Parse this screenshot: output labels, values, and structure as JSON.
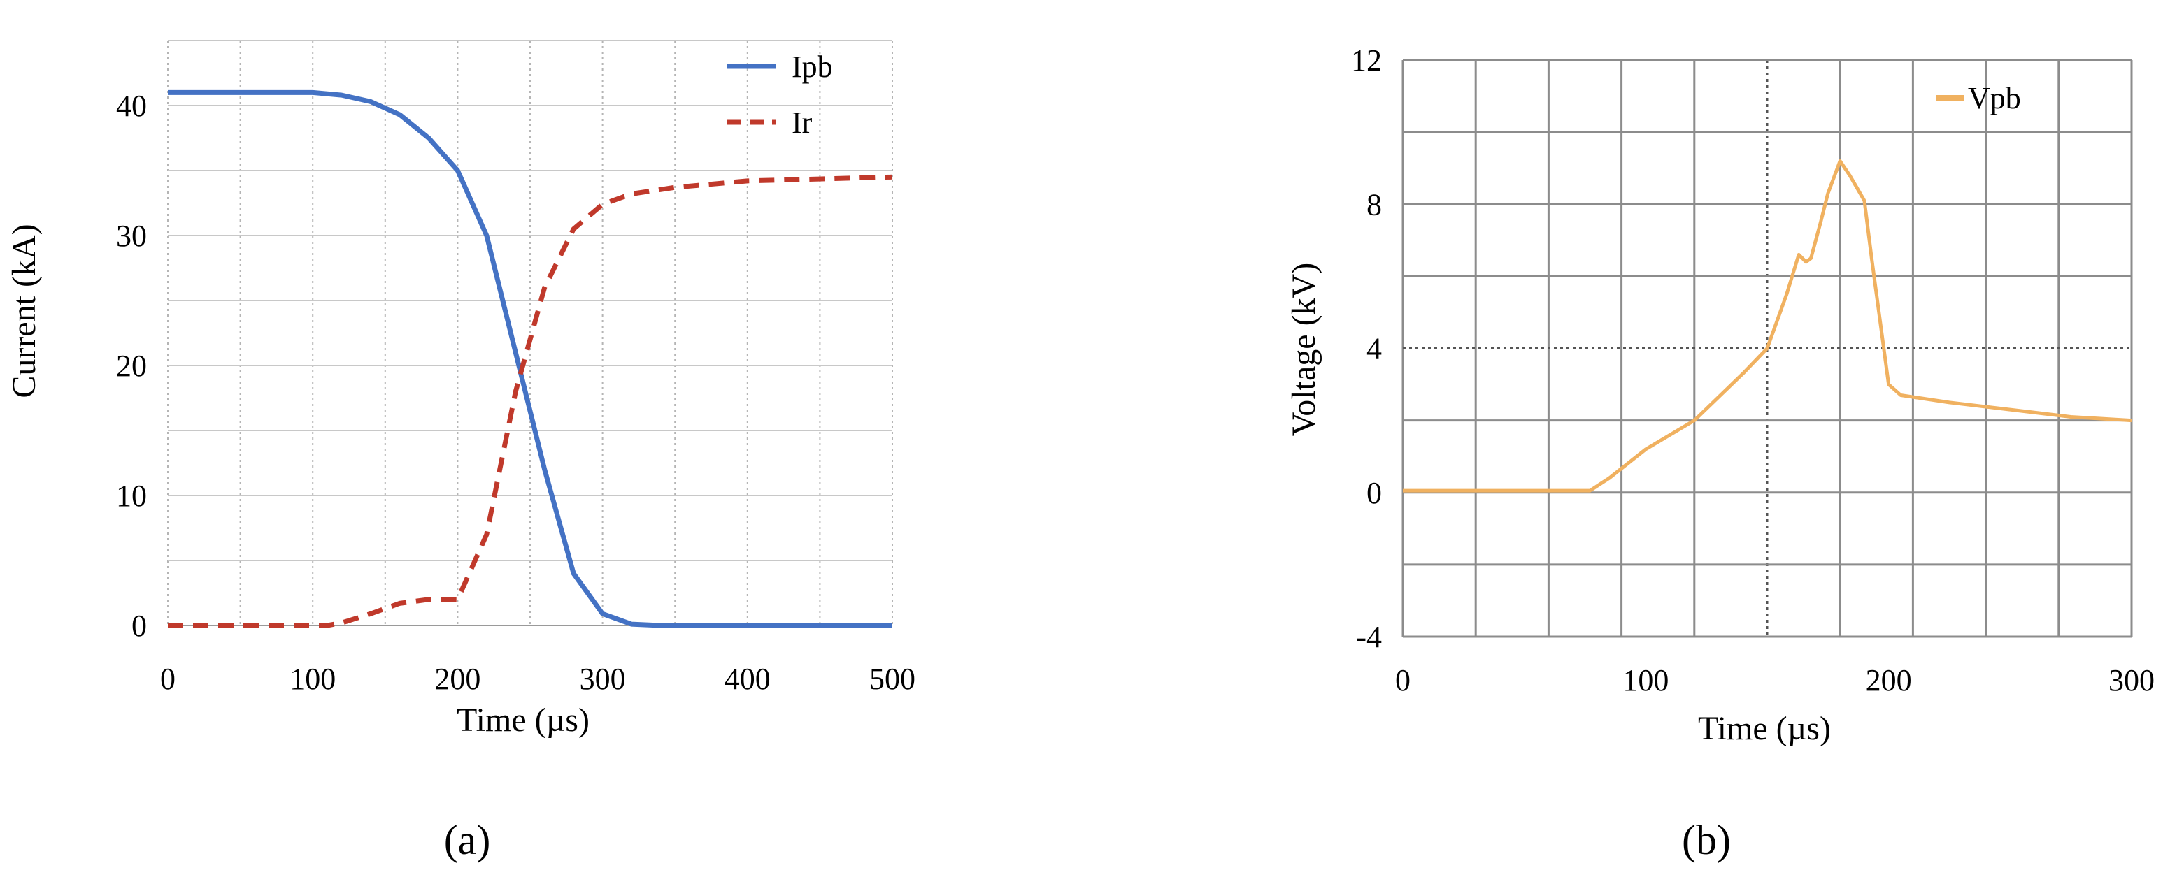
{
  "chart_data": [
    {
      "type": "line",
      "panel_label": "(a)",
      "xlabel": "Time (µs)",
      "ylabel": "Current (kA)",
      "xlim": [
        0,
        500
      ],
      "ylim": [
        0,
        45
      ],
      "xticks": [
        0,
        100,
        200,
        300,
        400,
        500
      ],
      "yticks": [
        0,
        10,
        20,
        30,
        40
      ],
      "grid": true,
      "legend_position": "top-right",
      "series": [
        {
          "name": "Ipb",
          "color": "#4472c4",
          "dash": "solid",
          "x": [
            0,
            100,
            120,
            140,
            160,
            180,
            200,
            220,
            240,
            260,
            280,
            300,
            320,
            340,
            400,
            500
          ],
          "y": [
            41,
            41,
            40.8,
            40.3,
            39.3,
            37.5,
            35,
            30,
            21,
            12,
            4,
            0.9,
            0.1,
            0,
            0,
            0
          ]
        },
        {
          "name": "Ir",
          "color": "#c0392b",
          "dash": "dashed",
          "x": [
            0,
            110,
            120,
            140,
            160,
            180,
            200,
            220,
            240,
            260,
            280,
            300,
            320,
            350,
            400,
            500
          ],
          "y": [
            0,
            0,
            0.2,
            0.9,
            1.7,
            2,
            2,
            7,
            18,
            26,
            30.5,
            32.4,
            33.2,
            33.7,
            34.2,
            34.5
          ]
        }
      ]
    },
    {
      "type": "line",
      "panel_label": "(b)",
      "xlabel": "Time (µs)",
      "ylabel": "Voltage (kV)",
      "xlim": [
        0,
        300
      ],
      "ylim": [
        -4,
        12
      ],
      "xticks": [
        0,
        100,
        200,
        300
      ],
      "yticks": [
        -4,
        0,
        4,
        8,
        12
      ],
      "grid": true,
      "legend_position": "top-right",
      "series": [
        {
          "name": "Vpb",
          "color": "#f0b160",
          "dash": "solid",
          "x": [
            0,
            77,
            85,
            100,
            120,
            140,
            150,
            158,
            163,
            166,
            168,
            172,
            175,
            180,
            184,
            190,
            193,
            197,
            200,
            205,
            225,
            250,
            275,
            300
          ],
          "y": [
            0.05,
            0.05,
            0.4,
            1.2,
            2,
            3.3,
            4,
            5.5,
            6.6,
            6.4,
            6.5,
            7.5,
            8.3,
            9.2,
            8.8,
            8.1,
            6.5,
            4.5,
            3,
            2.7,
            2.5,
            2.3,
            2.1,
            2
          ]
        }
      ]
    }
  ]
}
